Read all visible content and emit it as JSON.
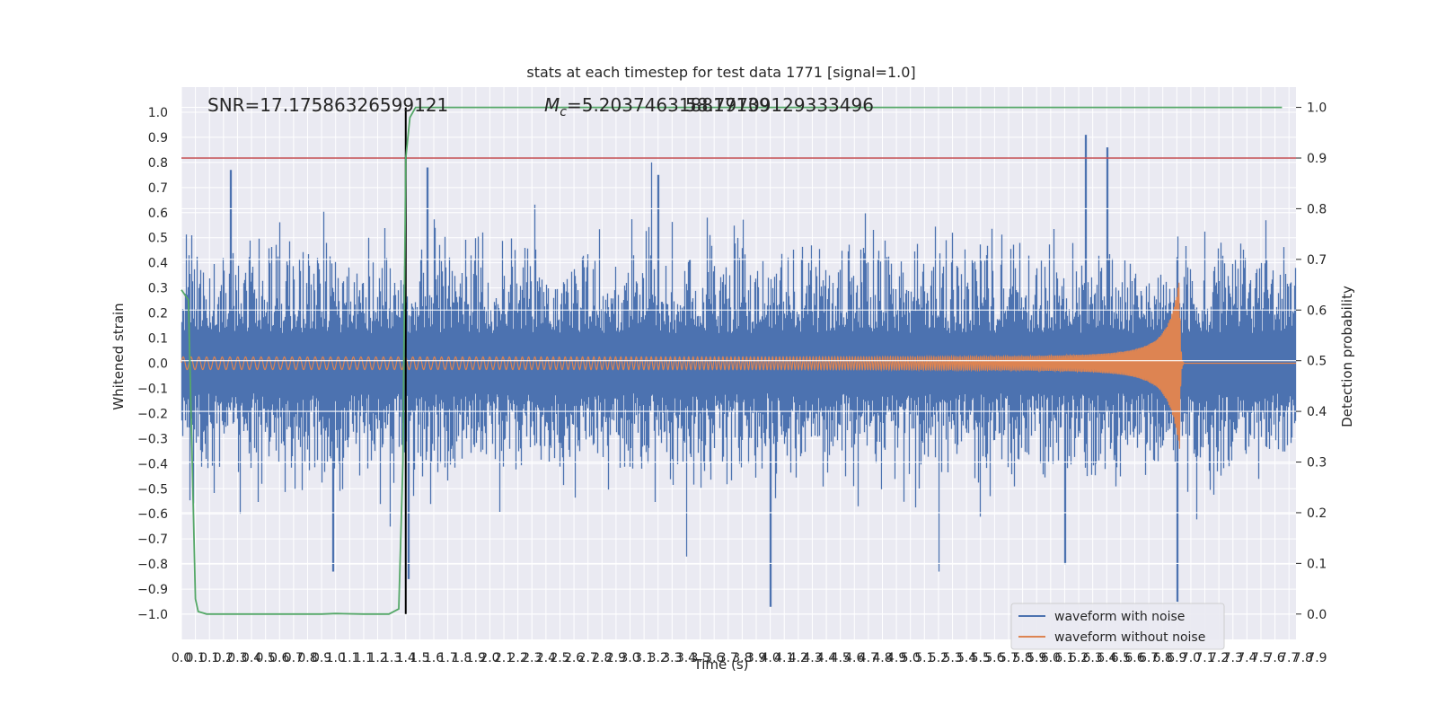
{
  "chart_data": {
    "type": "line",
    "title": "stats at each timestep for test data 1771 [signal=1.0]",
    "xlabel": "Time (s)",
    "ylabel": "Whitened strain",
    "y2label": "Detection probability",
    "xlim": [
      0.0,
      7.95
    ],
    "ylim": [
      -1.1,
      1.1
    ],
    "y2lim": [
      -0.05,
      1.04
    ],
    "x_tick_step": 0.1,
    "x_tick_labels": [
      "0.0",
      "0.1",
      "0.1",
      "0.2",
      "0.3",
      "0.4",
      "0.5",
      "0.6",
      "0.7",
      "0.8",
      "0.9",
      "1.0",
      "1.1",
      "1.1",
      "1.2",
      "1.3",
      "1.4",
      "1.5",
      "1.6",
      "1.7",
      "1.8",
      "1.9",
      "2.0",
      "2.1",
      "2.2",
      "2.3",
      "2.4",
      "2.5",
      "2.6",
      "2.7",
      "2.8",
      "2.9",
      "3.0",
      "3.1",
      "3.2",
      "3.3",
      "3.4",
      "3.5",
      "3.6",
      "3.7",
      "3.8",
      "3.9",
      "4.0",
      "4.1",
      "4.2",
      "4.3",
      "4.4",
      "4.5",
      "4.6",
      "4.7",
      "4.8",
      "4.9",
      "5.0",
      "5.1",
      "5.2",
      "5.3",
      "5.4",
      "5.5",
      "5.6",
      "5.7",
      "5.8",
      "5.9",
      "6.0",
      "6.1",
      "6.2",
      "6.3",
      "6.4",
      "6.5",
      "6.6",
      "6.7",
      "6.8",
      "6.9",
      "7.0",
      "7.1",
      "7.2",
      "7.3",
      "7.4",
      "7.5",
      "7.6",
      "7.7",
      "7.8",
      "7.9"
    ],
    "y_tick_labels": [
      "1.0",
      "0.9",
      "0.8",
      "0.7",
      "0.6",
      "0.5",
      "0.4",
      "0.3",
      "0.2",
      "0.1",
      "0.0",
      "−0.1",
      "−0.2",
      "−0.3",
      "−0.4",
      "−0.5",
      "−0.6",
      "−0.7",
      "−0.8",
      "−0.9",
      "−1.0"
    ],
    "y_tick_values": [
      1.0,
      0.9,
      0.8,
      0.7,
      0.6,
      0.5,
      0.4,
      0.3,
      0.2,
      0.1,
      0.0,
      -0.1,
      -0.2,
      -0.3,
      -0.4,
      -0.5,
      -0.6,
      -0.7,
      -0.8,
      -0.9,
      -1.0
    ],
    "y2_tick_labels": [
      "1.0",
      "0.9",
      "0.8",
      "0.7",
      "0.6",
      "0.5",
      "0.4",
      "0.3",
      "0.2",
      "0.1",
      "0.0"
    ],
    "y2_tick_values": [
      1.0,
      0.9,
      0.8,
      0.7,
      0.6,
      0.5,
      0.4,
      0.3,
      0.2,
      0.1,
      0.0
    ],
    "annotations": {
      "snr": "SNR=17.17586326599121",
      "mc_symbol": "M",
      "mc_sub": "c",
      "mc_value": "=5.203746318817139",
      "overlap": "58.79709129333496"
    },
    "threshold": {
      "value": 0.9,
      "axis": "y2",
      "color": "#c44e52"
    },
    "merger_time": 1.6,
    "series": [
      {
        "name": "waveform with noise",
        "color": "#4c72b0",
        "axis": "y",
        "description_of_data": "whitened strain noise, approx. Gaussian with peaks to ±0.9",
        "sigma": 0.17,
        "spikes": [
          [
            0.35,
            0.77
          ],
          [
            1.75,
            0.78
          ],
          [
            3.35,
            0.8
          ],
          [
            3.4,
            0.75
          ],
          [
            6.45,
            0.91
          ],
          [
            6.6,
            0.86
          ],
          [
            1.08,
            -0.83
          ],
          [
            1.62,
            -0.86
          ],
          [
            4.2,
            -0.97
          ],
          [
            7.1,
            -0.95
          ],
          [
            5.4,
            -0.83
          ],
          [
            6.3,
            -0.8
          ],
          [
            3.6,
            -0.77
          ]
        ]
      },
      {
        "name": "waveform without noise",
        "color": "#dd8452",
        "axis": "y",
        "chirp": {
          "t_merge": 7.12,
          "amp0": 0.025,
          "amp_peak": 0.35,
          "f0": 18,
          "f_end": 120
        }
      },
      {
        "name": "detection probability",
        "color": "#55a868",
        "axis": "y2",
        "x": [
          0.0,
          0.05,
          0.1,
          0.12,
          0.18,
          0.3,
          0.5,
          0.8,
          1.0,
          1.1,
          1.3,
          1.48,
          1.55,
          1.58,
          1.6,
          1.63,
          1.67,
          1.8,
          3.0,
          5.0,
          6.0,
          7.0,
          7.85
        ],
        "values": [
          0.64,
          0.62,
          0.03,
          0.005,
          0.0,
          0.0,
          0.0,
          0.0,
          0.0,
          0.001,
          0.0,
          0.0,
          0.01,
          0.3,
          0.9,
          0.98,
          1.0,
          1.0,
          1.0,
          1.0,
          1.0,
          1.0,
          1.0
        ]
      }
    ],
    "legend": {
      "location": "lower-right",
      "entries": [
        "waveform with noise",
        "waveform without noise"
      ]
    }
  }
}
